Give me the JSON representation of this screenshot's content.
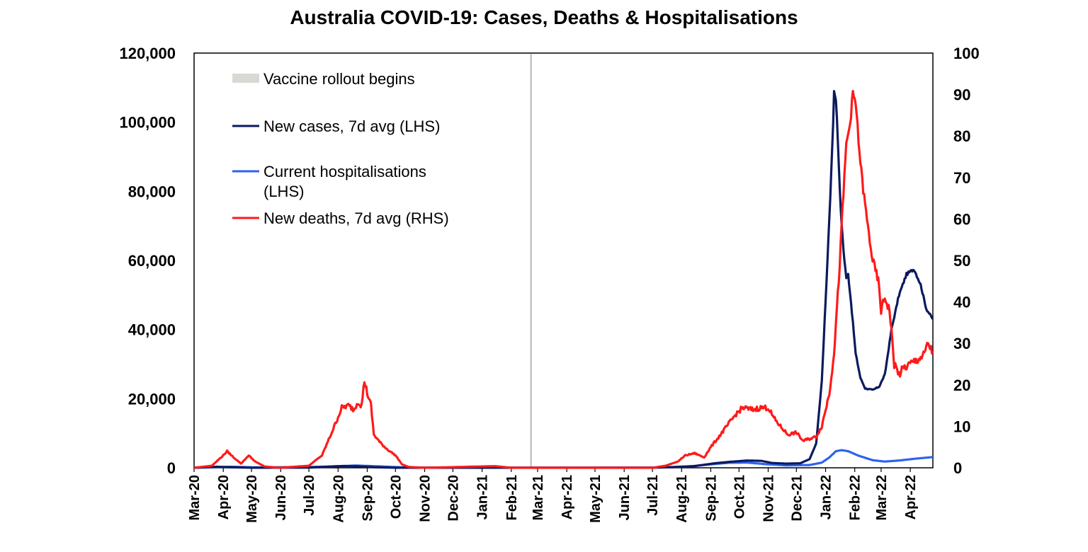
{
  "chart_data": {
    "type": "line",
    "title": "Australia COVID-19: Cases, Deaths & Hospitalisations",
    "x_axis": {
      "ticks": [
        "Mar-20",
        "Apr-20",
        "May-20",
        "Jun-20",
        "Jul-20",
        "Aug-20",
        "Sep-20",
        "Oct-20",
        "Nov-20",
        "Dec-20",
        "Jan-21",
        "Feb-21",
        "Mar-21",
        "Apr-21",
        "May-21",
        "Jun-21",
        "Jul-21",
        "Aug-21",
        "Sep-21",
        "Oct-21",
        "Nov-21",
        "Dec-21",
        "Jan-22",
        "Feb-22",
        "Mar-22",
        "Apr-22"
      ],
      "range": [
        "2020-03-01",
        "2022-04-25"
      ]
    },
    "y_left": {
      "range": [
        0,
        120000
      ],
      "ticks": [
        "0",
        "20,000",
        "40,000",
        "60,000",
        "80,000",
        "100,000",
        "120,000"
      ]
    },
    "y_right": {
      "range": [
        0,
        100
      ],
      "ticks": [
        "0",
        "10",
        "20",
        "30",
        "40",
        "50",
        "60",
        "70",
        "80",
        "90",
        "100"
      ]
    },
    "grid": false,
    "legend_position": "top-left",
    "vaccine_rollout": {
      "label": "Vaccine rollout begins",
      "date": "2021-02-22",
      "color": "#b8b8b8",
      "legend_color": "#d9d9d3"
    },
    "series": [
      {
        "name": "New cases, 7d avg (LHS)",
        "axis": "left",
        "color": "#0b1a5e",
        "points": [
          [
            "2020-03-01",
            0
          ],
          [
            "2020-03-25",
            300
          ],
          [
            "2020-04-10",
            150
          ],
          [
            "2020-05-01",
            20
          ],
          [
            "2020-07-01",
            50
          ],
          [
            "2020-08-05",
            500
          ],
          [
            "2020-08-20",
            450
          ],
          [
            "2020-09-10",
            150
          ],
          [
            "2020-10-01",
            20
          ],
          [
            "2021-01-01",
            10
          ],
          [
            "2021-07-01",
            50
          ],
          [
            "2021-07-20",
            150
          ],
          [
            "2021-08-15",
            500
          ],
          [
            "2021-09-05",
            1300
          ],
          [
            "2021-09-20",
            1700
          ],
          [
            "2021-10-10",
            2100
          ],
          [
            "2021-10-25",
            2000
          ],
          [
            "2021-11-05",
            1400
          ],
          [
            "2021-11-20",
            1200
          ],
          [
            "2021-12-05",
            1300
          ],
          [
            "2021-12-15",
            2500
          ],
          [
            "2021-12-22",
            7000
          ],
          [
            "2021-12-28",
            25000
          ],
          [
            "2022-01-03",
            60000
          ],
          [
            "2022-01-07",
            85000
          ],
          [
            "2022-01-09",
            100000
          ],
          [
            "2022-01-10",
            109000
          ],
          [
            "2022-01-12",
            107000
          ],
          [
            "2022-01-14",
            95000
          ],
          [
            "2022-01-17",
            75000
          ],
          [
            "2022-01-20",
            63000
          ],
          [
            "2022-01-23",
            55000
          ],
          [
            "2022-01-25",
            56000
          ],
          [
            "2022-01-28",
            48000
          ],
          [
            "2022-02-02",
            33000
          ],
          [
            "2022-02-07",
            26000
          ],
          [
            "2022-02-12",
            23000
          ],
          [
            "2022-02-20",
            22500
          ],
          [
            "2022-02-27",
            23500
          ],
          [
            "2022-03-05",
            27000
          ],
          [
            "2022-03-12",
            40000
          ],
          [
            "2022-03-20",
            50000
          ],
          [
            "2022-03-28",
            56000
          ],
          [
            "2022-04-05",
            57500
          ],
          [
            "2022-04-12",
            53000
          ],
          [
            "2022-04-18",
            46000
          ],
          [
            "2022-04-25",
            43000
          ]
        ]
      },
      {
        "name": "Current hospitalisations (LHS)",
        "axis": "left",
        "color": "#2d62f0",
        "points": [
          [
            "2020-03-01",
            0
          ],
          [
            "2020-04-10",
            300
          ],
          [
            "2020-05-10",
            100
          ],
          [
            "2020-07-15",
            300
          ],
          [
            "2020-08-20",
            650
          ],
          [
            "2020-09-15",
            400
          ],
          [
            "2020-10-15",
            50
          ],
          [
            "2021-01-01",
            30
          ],
          [
            "2021-07-01",
            60
          ],
          [
            "2021-08-10",
            400
          ],
          [
            "2021-09-01",
            1000
          ],
          [
            "2021-09-20",
            1450
          ],
          [
            "2021-10-10",
            1500
          ],
          [
            "2021-11-01",
            1000
          ],
          [
            "2021-11-20",
            700
          ],
          [
            "2021-12-15",
            800
          ],
          [
            "2021-12-28",
            1500
          ],
          [
            "2022-01-05",
            3000
          ],
          [
            "2022-01-12",
            4800
          ],
          [
            "2022-01-18",
            5100
          ],
          [
            "2022-01-25",
            4800
          ],
          [
            "2022-02-05",
            3500
          ],
          [
            "2022-02-20",
            2200
          ],
          [
            "2022-03-05",
            1800
          ],
          [
            "2022-03-20",
            2100
          ],
          [
            "2022-04-05",
            2600
          ],
          [
            "2022-04-25",
            3100
          ]
        ]
      },
      {
        "name": "New deaths, 7d avg (RHS)",
        "axis": "right",
        "color": "#ff1a1a",
        "points": [
          [
            "2020-03-01",
            0
          ],
          [
            "2020-03-20",
            0.5
          ],
          [
            "2020-04-01",
            3
          ],
          [
            "2020-04-05",
            4
          ],
          [
            "2020-04-12",
            2.5
          ],
          [
            "2020-04-20",
            1
          ],
          [
            "2020-04-28",
            3
          ],
          [
            "2020-05-05",
            1.5
          ],
          [
            "2020-05-15",
            0.3
          ],
          [
            "2020-06-01",
            0
          ],
          [
            "2020-07-01",
            0.5
          ],
          [
            "2020-07-15",
            3
          ],
          [
            "2020-07-28",
            10
          ],
          [
            "2020-08-05",
            14.5
          ],
          [
            "2020-08-12",
            15
          ],
          [
            "2020-08-18",
            14
          ],
          [
            "2020-08-22",
            16
          ],
          [
            "2020-08-26",
            15
          ],
          [
            "2020-08-29",
            21
          ],
          [
            "2020-09-01",
            18
          ],
          [
            "2020-09-05",
            15
          ],
          [
            "2020-09-08",
            8
          ],
          [
            "2020-09-15",
            6
          ],
          [
            "2020-09-22",
            4.5
          ],
          [
            "2020-10-01",
            3
          ],
          [
            "2020-10-08",
            0.8
          ],
          [
            "2020-10-15",
            0.2
          ],
          [
            "2020-11-01",
            0
          ],
          [
            "2021-01-15",
            0.4
          ],
          [
            "2021-02-01",
            0
          ],
          [
            "2021-07-01",
            0
          ],
          [
            "2021-07-15",
            0.5
          ],
          [
            "2021-07-28",
            1.5
          ],
          [
            "2021-08-05",
            3
          ],
          [
            "2021-08-15",
            3.5
          ],
          [
            "2021-08-25",
            2.5
          ],
          [
            "2021-09-01",
            5
          ],
          [
            "2021-09-08",
            7
          ],
          [
            "2021-09-18",
            10
          ],
          [
            "2021-09-28",
            13
          ],
          [
            "2021-10-05",
            14.5
          ],
          [
            "2021-10-15",
            14
          ],
          [
            "2021-10-25",
            14.5
          ],
          [
            "2021-11-01",
            14.5
          ],
          [
            "2021-11-07",
            12
          ],
          [
            "2021-11-14",
            10
          ],
          [
            "2021-11-22",
            8
          ],
          [
            "2021-12-01",
            8.5
          ],
          [
            "2021-12-08",
            6.5
          ],
          [
            "2021-12-15",
            7
          ],
          [
            "2021-12-22",
            7.5
          ],
          [
            "2021-12-28",
            10
          ],
          [
            "2022-01-05",
            18
          ],
          [
            "2022-01-10",
            28
          ],
          [
            "2022-01-15",
            45
          ],
          [
            "2022-01-19",
            62
          ],
          [
            "2022-01-23",
            78
          ],
          [
            "2022-01-27",
            83
          ],
          [
            "2022-01-30",
            90
          ],
          [
            "2022-02-02",
            88
          ],
          [
            "2022-02-06",
            76
          ],
          [
            "2022-02-10",
            67
          ],
          [
            "2022-02-15",
            58
          ],
          [
            "2022-02-20",
            50
          ],
          [
            "2022-02-26",
            45
          ],
          [
            "2022-03-01",
            38
          ],
          [
            "2022-03-05",
            41
          ],
          [
            "2022-03-10",
            38
          ],
          [
            "2022-03-15",
            25
          ],
          [
            "2022-03-20",
            22.5
          ],
          [
            "2022-03-25",
            24
          ],
          [
            "2022-04-01",
            25
          ],
          [
            "2022-04-08",
            26
          ],
          [
            "2022-04-15",
            27
          ],
          [
            "2022-04-20",
            30
          ],
          [
            "2022-04-25",
            27.5
          ]
        ]
      }
    ]
  }
}
